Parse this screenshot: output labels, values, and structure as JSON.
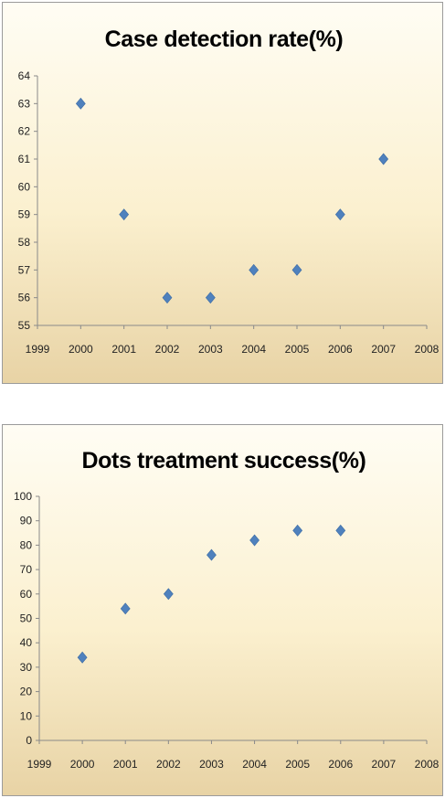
{
  "charts": [
    {
      "title": "Case detection rate(%)",
      "marker_color": "#4f81bd"
    },
    {
      "title": "Dots treatment success(%)",
      "marker_color": "#4f81bd"
    }
  ],
  "chart_data": [
    {
      "type": "scatter",
      "title": "Case detection rate(%)",
      "xlabel": "",
      "ylabel": "",
      "xlim": [
        1999,
        2008
      ],
      "ylim": [
        55,
        64
      ],
      "x_ticks": [
        1999,
        2000,
        2001,
        2002,
        2003,
        2004,
        2005,
        2006,
        2007,
        2008
      ],
      "y_ticks": [
        55,
        56,
        57,
        58,
        59,
        60,
        61,
        62,
        63,
        64
      ],
      "grid": false,
      "legend": false,
      "marker": "diamond",
      "series": [
        {
          "x": [
            2000,
            2001,
            2002,
            2003,
            2004,
            2005,
            2006,
            2007
          ],
          "y": [
            63,
            59,
            56,
            56,
            57,
            57,
            59,
            61
          ]
        }
      ]
    },
    {
      "type": "scatter",
      "title": "Dots treatment success(%)",
      "xlabel": "",
      "ylabel": "",
      "xlim": [
        1999,
        2008
      ],
      "ylim": [
        0,
        100
      ],
      "x_ticks": [
        1999,
        2000,
        2001,
        2002,
        2003,
        2004,
        2005,
        2006,
        2007,
        2008
      ],
      "y_ticks": [
        0,
        10,
        20,
        30,
        40,
        50,
        60,
        70,
        80,
        90,
        100
      ],
      "grid": false,
      "legend": false,
      "marker": "diamond",
      "series": [
        {
          "x": [
            2000,
            2001,
            2002,
            2003,
            2004,
            2005,
            2006
          ],
          "y": [
            34,
            54,
            60,
            76,
            82,
            86,
            86
          ]
        }
      ]
    }
  ]
}
